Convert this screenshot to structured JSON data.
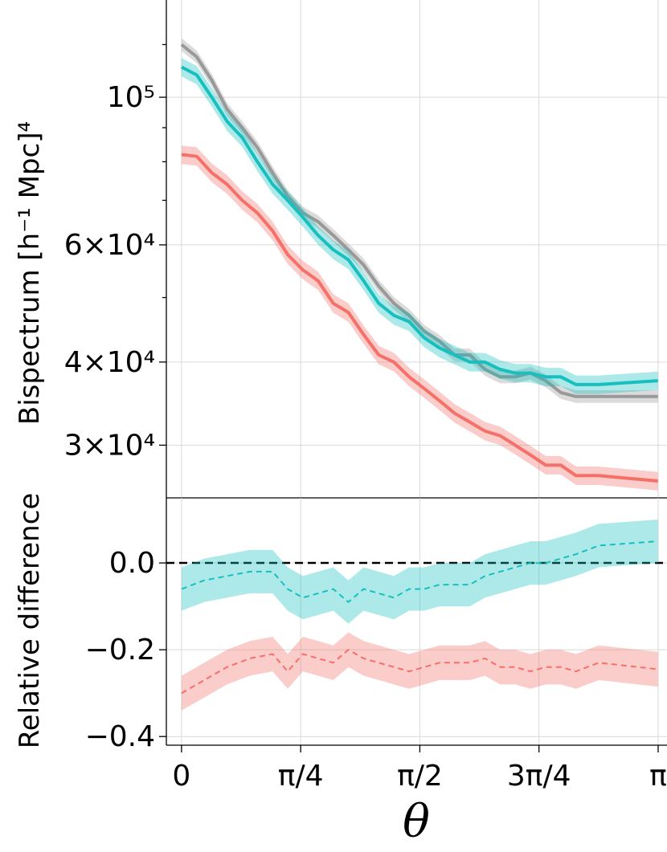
{
  "chart_data": [
    {
      "type": "line",
      "panel": "top",
      "title": "",
      "xlabel": "",
      "ylabel": "Bispectrum [h⁻¹ Mpc]⁴",
      "yscale": "log",
      "ylim": [
        25000,
        140000
      ],
      "xlim": [
        -0.1,
        3.2
      ],
      "yticks": [
        {
          "value": 100000,
          "label": "10⁵"
        },
        {
          "value": 60000,
          "label": "6×10⁴"
        },
        {
          "value": 40000,
          "label": "4×10⁴"
        },
        {
          "value": 30000,
          "label": "3×10⁴"
        }
      ],
      "grid": true,
      "series": [
        {
          "name": "grey",
          "color": "#999999",
          "band": 0.022,
          "x": [
            0,
            0.1,
            0.2,
            0.3,
            0.4,
            0.5,
            0.6,
            0.7,
            0.8,
            0.9,
            1.0,
            1.1,
            1.2,
            1.3,
            1.4,
            1.5,
            1.6,
            1.7,
            1.8,
            1.9,
            2.0,
            2.1,
            2.2,
            2.3,
            2.4,
            2.5,
            2.6,
            2.75,
            3.14
          ],
          "y": [
            120000,
            115000,
            106000,
            96000,
            90000,
            84000,
            77000,
            71000,
            67000,
            65000,
            62000,
            59000,
            56000,
            52000,
            49000,
            47000,
            44500,
            43000,
            41000,
            41000,
            39000,
            38000,
            38000,
            38500,
            37500,
            36000,
            35500,
            35500,
            35500
          ]
        },
        {
          "name": "teal",
          "color": "#17bfbf",
          "band": 0.032,
          "x": [
            0,
            0.1,
            0.2,
            0.3,
            0.4,
            0.5,
            0.6,
            0.7,
            0.8,
            0.9,
            1.0,
            1.1,
            1.2,
            1.3,
            1.4,
            1.5,
            1.6,
            1.7,
            1.8,
            1.9,
            2.0,
            2.1,
            2.2,
            2.3,
            2.4,
            2.5,
            2.6,
            2.75,
            3.14
          ],
          "y": [
            111000,
            108000,
            100000,
            92000,
            87000,
            80000,
            74000,
            70000,
            66000,
            62000,
            59000,
            57000,
            53000,
            49000,
            47000,
            46000,
            43500,
            42000,
            41000,
            40000,
            40000,
            39000,
            38500,
            38500,
            38000,
            38000,
            37000,
            37000,
            37500
          ]
        },
        {
          "name": "red",
          "color": "#f47068",
          "band": 0.032,
          "x": [
            0,
            0.1,
            0.2,
            0.3,
            0.4,
            0.5,
            0.6,
            0.7,
            0.8,
            0.9,
            1.0,
            1.1,
            1.2,
            1.3,
            1.4,
            1.5,
            1.6,
            1.7,
            1.8,
            1.9,
            2.0,
            2.1,
            2.2,
            2.3,
            2.4,
            2.5,
            2.6,
            2.75,
            3.14
          ],
          "y": [
            82000,
            81500,
            77000,
            74000,
            70000,
            67000,
            63000,
            58000,
            55000,
            53000,
            49000,
            47500,
            44000,
            41000,
            40000,
            38000,
            36500,
            35000,
            33500,
            32500,
            31500,
            31000,
            30000,
            29000,
            28000,
            28000,
            27000,
            27000,
            26500
          ]
        }
      ]
    },
    {
      "type": "line",
      "panel": "bottom",
      "title": "",
      "xlabel": "θ",
      "ylabel": "Relative difference",
      "ylim": [
        -0.42,
        0.15
      ],
      "xlim": [
        -0.1,
        3.2
      ],
      "yticks": [
        {
          "value": 0.0,
          "label": "0.0"
        },
        {
          "value": -0.2,
          "label": "−0.2"
        },
        {
          "value": -0.4,
          "label": "−0.4"
        }
      ],
      "xticks": [
        {
          "value": 0,
          "label": "0"
        },
        {
          "value": 0.7854,
          "label": "π/4"
        },
        {
          "value": 1.5708,
          "label": "π/2"
        },
        {
          "value": 2.3562,
          "label": "3π/4"
        },
        {
          "value": 3.1416,
          "label": "π"
        }
      ],
      "reference_line": {
        "y": 0.0,
        "style": "dashed",
        "color": "#000000"
      },
      "grid": true,
      "series": [
        {
          "name": "teal",
          "color": "#17bfbf",
          "band": 0.05,
          "x": [
            0,
            0.15,
            0.3,
            0.45,
            0.6,
            0.7,
            0.8,
            0.9,
            1.0,
            1.1,
            1.2,
            1.3,
            1.4,
            1.5,
            1.6,
            1.7,
            1.8,
            1.9,
            2.0,
            2.1,
            2.2,
            2.3,
            2.4,
            2.5,
            2.6,
            2.75,
            3.14
          ],
          "y": [
            -0.06,
            -0.04,
            -0.03,
            -0.02,
            -0.02,
            -0.06,
            -0.08,
            -0.07,
            -0.06,
            -0.09,
            -0.06,
            -0.07,
            -0.08,
            -0.06,
            -0.06,
            -0.05,
            -0.05,
            -0.05,
            -0.03,
            -0.02,
            -0.01,
            0.0,
            0.0,
            0.01,
            0.02,
            0.04,
            0.05
          ]
        },
        {
          "name": "red",
          "color": "#f47068",
          "band": 0.04,
          "x": [
            0,
            0.15,
            0.3,
            0.45,
            0.6,
            0.7,
            0.8,
            0.9,
            1.0,
            1.1,
            1.2,
            1.3,
            1.4,
            1.5,
            1.6,
            1.7,
            1.8,
            1.9,
            2.0,
            2.1,
            2.2,
            2.3,
            2.4,
            2.5,
            2.6,
            2.75,
            3.14
          ],
          "y": [
            -0.3,
            -0.27,
            -0.24,
            -0.22,
            -0.21,
            -0.25,
            -0.21,
            -0.22,
            -0.23,
            -0.2,
            -0.22,
            -0.23,
            -0.24,
            -0.25,
            -0.24,
            -0.23,
            -0.23,
            -0.23,
            -0.22,
            -0.24,
            -0.24,
            -0.25,
            -0.24,
            -0.24,
            -0.25,
            -0.23,
            -0.245
          ]
        }
      ]
    }
  ]
}
